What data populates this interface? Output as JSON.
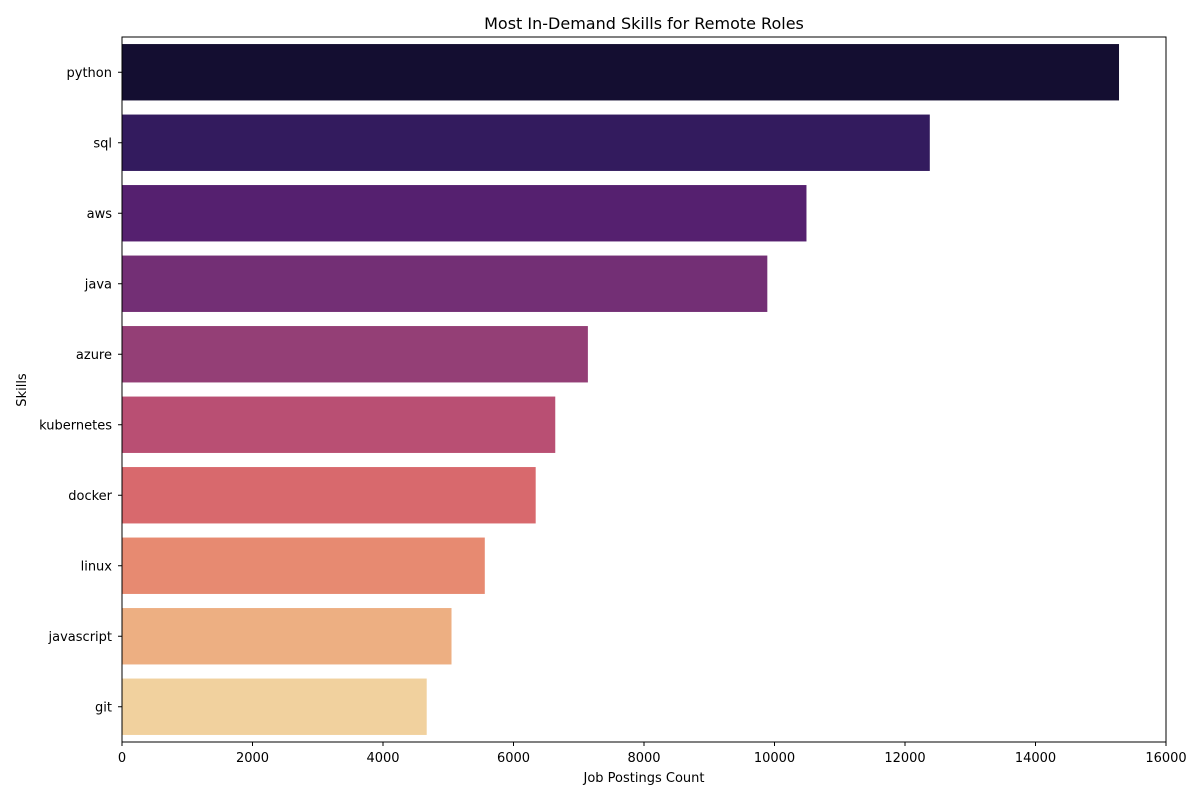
{
  "chart_data": {
    "type": "bar",
    "orientation": "horizontal",
    "title": "Most In-Demand Skills for Remote Roles",
    "xlabel": "Job Postings Count",
    "ylabel": "Skills",
    "categories": [
      "python",
      "sql",
      "aws",
      "java",
      "azure",
      "kubernetes",
      "docker",
      "linux",
      "javascript",
      "git"
    ],
    "values": [
      15280,
      12380,
      10490,
      9890,
      7140,
      6640,
      6340,
      5560,
      5050,
      4670
    ],
    "xlim": [
      0,
      16000
    ],
    "xticks": [
      0,
      2000,
      4000,
      6000,
      8000,
      10000,
      12000,
      14000,
      16000
    ],
    "colors": [
      "#140e31",
      "#331b5e",
      "#55206f",
      "#732f75",
      "#943f76",
      "#b94f73",
      "#d8696d",
      "#e78a71",
      "#edaf82",
      "#f1d19e"
    ],
    "grid": false,
    "legend": false
  }
}
